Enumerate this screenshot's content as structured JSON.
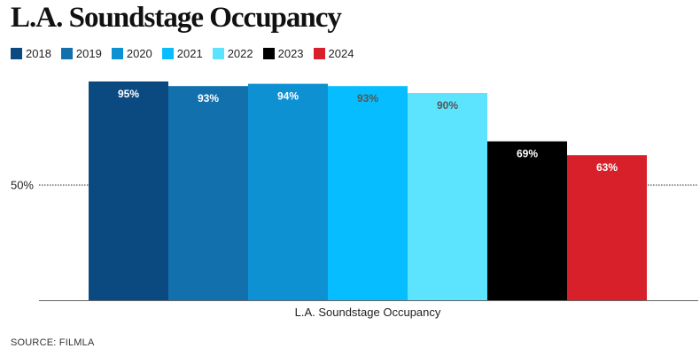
{
  "title": "L.A. Soundstage Occupancy",
  "source": "SOURCE: FILMLA",
  "chart_data": {
    "type": "bar",
    "title": "L.A. Soundstage Occupancy",
    "categories": [
      "L.A. Soundstage Occupancy"
    ],
    "xlabel": "L.A. Soundstage Occupancy",
    "ylabel": "",
    "ylim": [
      0,
      100
    ],
    "yticks": [
      {
        "value": 50,
        "label": "50%"
      }
    ],
    "grid": "dotted at 50%",
    "legend": "top-left",
    "series": [
      {
        "name": "2018",
        "values": [
          95
        ],
        "label": "95%",
        "color": "#0a4a80",
        "label_color": "#ffffff"
      },
      {
        "name": "2019",
        "values": [
          93
        ],
        "label": "93%",
        "color": "#1270ad",
        "label_color": "#ffffff"
      },
      {
        "name": "2020",
        "values": [
          94
        ],
        "label": "94%",
        "color": "#0e91d3",
        "label_color": "#ffffff"
      },
      {
        "name": "2021",
        "values": [
          93
        ],
        "label": "93%",
        "color": "#06beff",
        "label_color": "#555555"
      },
      {
        "name": "2022",
        "values": [
          90
        ],
        "label": "90%",
        "color": "#5ce4ff",
        "label_color": "#555555"
      },
      {
        "name": "2023",
        "values": [
          69
        ],
        "label": "69%",
        "color": "#000000",
        "label_color": "#ffffff"
      },
      {
        "name": "2024",
        "values": [
          63
        ],
        "label": "63%",
        "color": "#d8202a",
        "label_color": "#ffffff"
      }
    ]
  }
}
